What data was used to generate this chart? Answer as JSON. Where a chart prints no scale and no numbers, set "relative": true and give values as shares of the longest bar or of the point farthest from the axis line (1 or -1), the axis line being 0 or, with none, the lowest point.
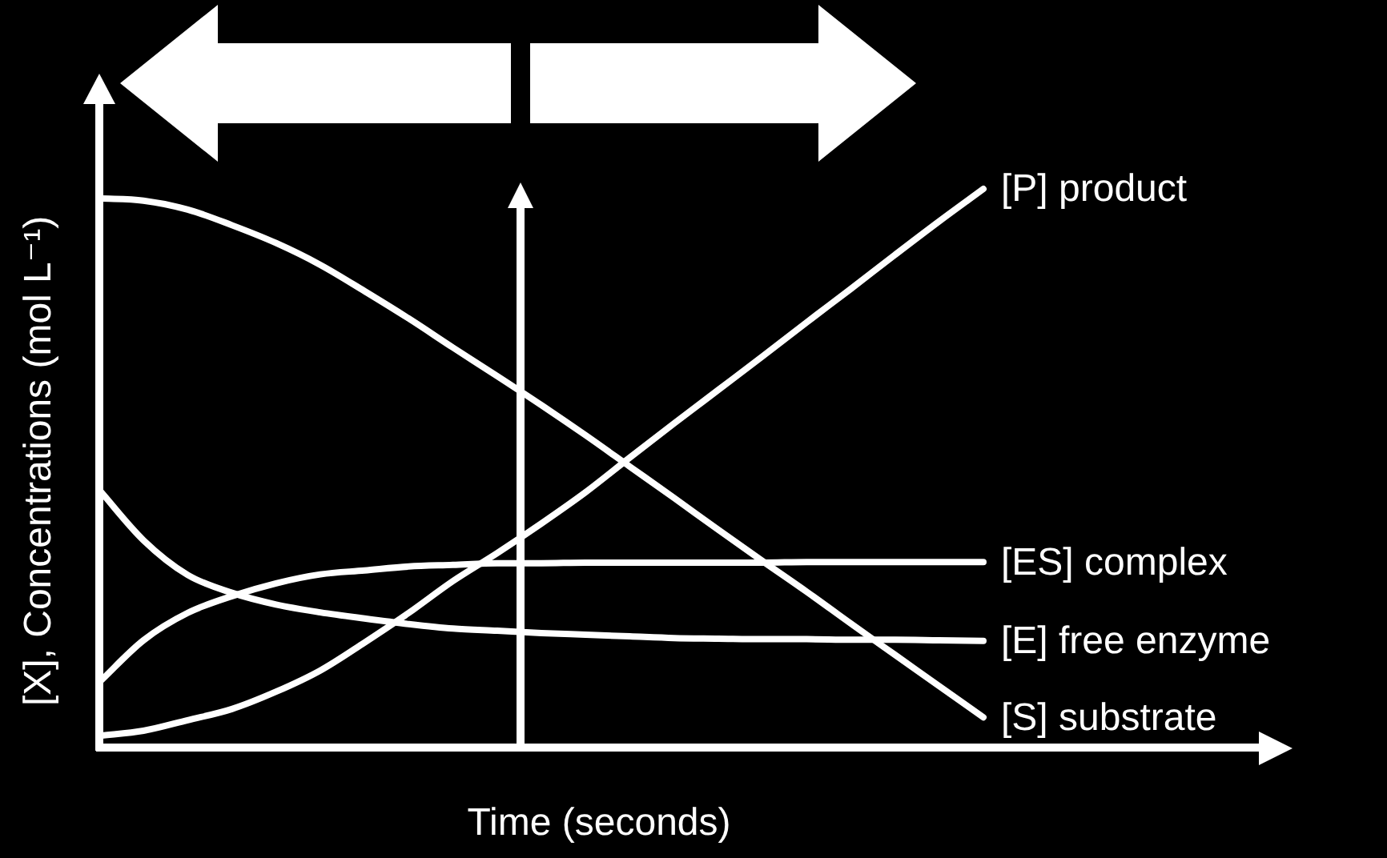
{
  "chart_data": {
    "type": "line",
    "relative": true,
    "marker": "none",
    "xlabel": "Time (seconds)",
    "ylabel": "[X], Concentrations (mol L⁻¹)",
    "categories": [
      null,
      null,
      null,
      null,
      null,
      null,
      null,
      null,
      null,
      null,
      null,
      null,
      null,
      null,
      null,
      null,
      null,
      null,
      null,
      null,
      null
    ],
    "series": [
      {
        "name": "[P] product",
        "color": "#ffffff",
        "values": [
          0.021,
          0.03,
          0.049,
          0.069,
          0.1,
          0.138,
          0.188,
          0.241,
          0.298,
          0.348,
          0.401,
          0.457,
          0.519,
          0.58,
          0.64,
          0.7,
          0.761,
          0.821,
          0.882,
          0.942,
          1
        ]
      },
      {
        "name": "[ES] complex",
        "color": "#ffffff",
        "values": [
          0.117,
          0.192,
          0.241,
          0.271,
          0.294,
          0.31,
          0.317,
          0.324,
          0.327,
          0.33,
          0.33,
          0.331,
          0.331,
          0.331,
          0.331,
          0.331,
          0.332,
          0.332,
          0.332,
          0.332,
          0.332
        ]
      },
      {
        "name": "[E] free enzyme",
        "color": "#ffffff",
        "values": [
          0.461,
          0.371,
          0.309,
          0.277,
          0.256,
          0.242,
          0.231,
          0.221,
          0.213,
          0.209,
          0.205,
          0.202,
          0.199,
          0.196,
          0.195,
          0.194,
          0.194,
          0.193,
          0.193,
          0.192,
          0.191
        ]
      },
      {
        "name": "[S] substrate",
        "color": "#ffffff",
        "values": [
          0.983,
          0.979,
          0.963,
          0.935,
          0.903,
          0.864,
          0.817,
          0.768,
          0.716,
          0.665,
          0.613,
          0.559,
          0.503,
          0.447,
          0.39,
          0.334,
          0.279,
          0.222,
          0.166,
          0.11,
          0.054
        ]
      }
    ]
  }
}
